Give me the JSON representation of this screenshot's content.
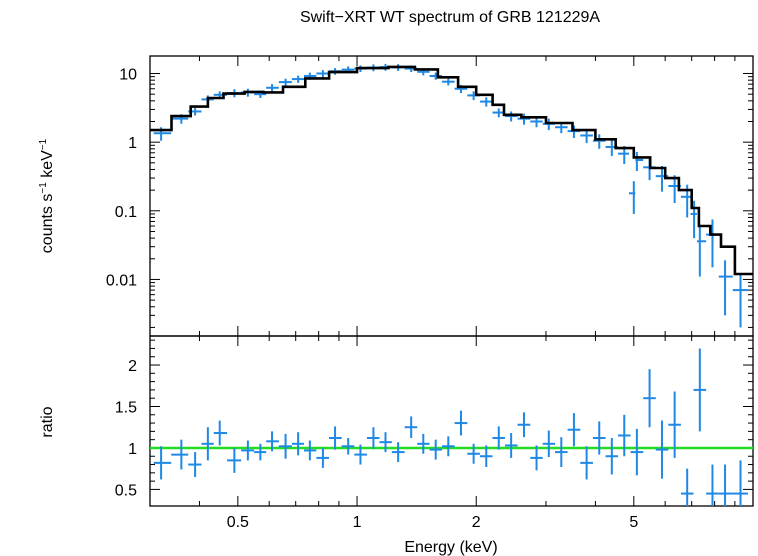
{
  "chart_data": {
    "type": "scatter",
    "title": "Swift−XRT WT spectrum of GRB 121229A",
    "xlabel": "Energy (keV)",
    "x_scale": "log",
    "xlim": [
      0.3,
      10
    ],
    "x_ticks": [
      0.5,
      1,
      2,
      5
    ],
    "x_tick_labels": [
      "0.5",
      "1",
      "2",
      "5"
    ],
    "colors": {
      "data": "#1e88e5",
      "model": "#000000",
      "unity": "#22dd22"
    },
    "panels": [
      {
        "name": "spectrum",
        "ylabel_parts": [
          "counts s",
          "−1",
          " keV",
          "−1"
        ],
        "y_scale": "log",
        "ylim": [
          0.0015,
          18
        ],
        "y_ticks": [
          0.01,
          0.1,
          1,
          10
        ],
        "y_tick_labels": [
          "0.01",
          "0.1",
          "1",
          "10"
        ],
        "series": [
          {
            "name": "data",
            "kind": "errorbar",
            "points": [
              [
                0.32,
                1.35,
                0.3
              ],
              [
                0.36,
                2.2,
                0.35
              ],
              [
                0.39,
                2.8,
                0.35
              ],
              [
                0.42,
                4.2,
                0.6
              ],
              [
                0.45,
                4.9,
                0.6
              ],
              [
                0.49,
                5.2,
                0.7
              ],
              [
                0.53,
                5.3,
                0.7
              ],
              [
                0.57,
                5.0,
                0.6
              ],
              [
                0.61,
                6.2,
                0.8
              ],
              [
                0.66,
                7.5,
                0.9
              ],
              [
                0.71,
                8.3,
                1.0
              ],
              [
                0.76,
                9.2,
                1.1
              ],
              [
                0.82,
                10.0,
                1.2
              ],
              [
                0.88,
                10.8,
                1.2
              ],
              [
                0.95,
                11.4,
                1.3
              ],
              [
                1.02,
                11.8,
                1.3
              ],
              [
                1.1,
                12.2,
                1.4
              ],
              [
                1.18,
                12.4,
                1.4
              ],
              [
                1.27,
                12.3,
                1.4
              ],
              [
                1.37,
                11.8,
                1.3
              ],
              [
                1.47,
                10.6,
                1.2
              ],
              [
                1.58,
                9.2,
                1.1
              ],
              [
                1.7,
                7.6,
                0.9
              ],
              [
                1.83,
                6.0,
                0.8
              ],
              [
                1.97,
                4.8,
                0.7
              ],
              [
                2.12,
                3.9,
                0.6
              ],
              [
                2.28,
                2.7,
                0.4
              ],
              [
                2.45,
                2.4,
                0.4
              ],
              [
                2.64,
                2.2,
                0.4
              ],
              [
                2.84,
                2.0,
                0.35
              ],
              [
                3.05,
                1.85,
                0.35
              ],
              [
                3.28,
                1.65,
                0.3
              ],
              [
                3.53,
                1.45,
                0.3
              ],
              [
                3.8,
                1.25,
                0.28
              ],
              [
                4.09,
                1.05,
                0.25
              ],
              [
                4.4,
                0.85,
                0.22
              ],
              [
                4.73,
                0.68,
                0.2
              ],
              [
                5.0,
                0.18,
                0.09
              ],
              [
                5.09,
                0.55,
                0.17
              ],
              [
                5.48,
                0.43,
                0.15
              ],
              [
                5.89,
                0.32,
                0.13
              ],
              [
                6.34,
                0.23,
                0.1
              ],
              [
                6.82,
                0.16,
                0.08
              ],
              [
                7.1,
                0.09,
                0.05
              ],
              [
                7.34,
                0.036,
                0.025
              ],
              [
                7.9,
                0.045,
                0.03
              ],
              [
                8.5,
                0.011,
                0.008
              ],
              [
                9.3,
                0.007,
                0.005
              ]
            ]
          },
          {
            "name": "model",
            "kind": "step",
            "points": [
              [
                0.3,
                1.5
              ],
              [
                0.34,
                2.4
              ],
              [
                0.38,
                3.3
              ],
              [
                0.42,
                4.4
              ],
              [
                0.46,
                5.1
              ],
              [
                0.52,
                5.4
              ],
              [
                0.58,
                5.3
              ],
              [
                0.65,
                6.4
              ],
              [
                0.74,
                8.5
              ],
              [
                0.85,
                10.5
              ],
              [
                1.0,
                12.0
              ],
              [
                1.2,
                12.5
              ],
              [
                1.4,
                11.5
              ],
              [
                1.6,
                8.8
              ],
              [
                1.8,
                6.4
              ],
              [
                2.0,
                4.9
              ],
              [
                2.2,
                3.5
              ],
              [
                2.35,
                2.5
              ],
              [
                2.6,
                2.3
              ],
              [
                3.0,
                1.9
              ],
              [
                3.5,
                1.5
              ],
              [
                4.0,
                1.1
              ],
              [
                4.5,
                0.82
              ],
              [
                5.0,
                0.6
              ],
              [
                5.5,
                0.42
              ],
              [
                6.0,
                0.3
              ],
              [
                6.5,
                0.2
              ],
              [
                7.0,
                0.11
              ],
              [
                7.3,
                0.06
              ],
              [
                7.8,
                0.045
              ],
              [
                8.3,
                0.03
              ],
              [
                9.0,
                0.012
              ],
              [
                10.0,
                0.012
              ]
            ]
          }
        ]
      },
      {
        "name": "ratio",
        "ylabel": "ratio",
        "y_scale": "linear",
        "ylim": [
          0.3,
          2.35
        ],
        "y_ticks": [
          0.5,
          1,
          1.5,
          2
        ],
        "y_tick_labels": [
          "0.5",
          "1",
          "1.5",
          "2"
        ],
        "reference_line": 1,
        "series": [
          {
            "name": "data",
            "kind": "errorbar",
            "points": [
              [
                0.32,
                0.82,
                0.2
              ],
              [
                0.36,
                0.92,
                0.18
              ],
              [
                0.39,
                0.8,
                0.15
              ],
              [
                0.42,
                1.05,
                0.2
              ],
              [
                0.45,
                1.18,
                0.15
              ],
              [
                0.49,
                0.85,
                0.15
              ],
              [
                0.53,
                0.97,
                0.12
              ],
              [
                0.57,
                0.95,
                0.1
              ],
              [
                0.61,
                1.08,
                0.12
              ],
              [
                0.66,
                1.02,
                0.15
              ],
              [
                0.71,
                1.05,
                0.14
              ],
              [
                0.76,
                0.97,
                0.12
              ],
              [
                0.82,
                0.88,
                0.12
              ],
              [
                0.88,
                1.12,
                0.14
              ],
              [
                0.95,
                1.02,
                0.1
              ],
              [
                1.02,
                0.92,
                0.12
              ],
              [
                1.1,
                1.12,
                0.13
              ],
              [
                1.18,
                1.07,
                0.12
              ],
              [
                1.27,
                0.95,
                0.12
              ],
              [
                1.37,
                1.25,
                0.13
              ],
              [
                1.47,
                1.05,
                0.12
              ],
              [
                1.58,
                0.98,
                0.12
              ],
              [
                1.7,
                1.02,
                0.12
              ],
              [
                1.83,
                1.3,
                0.15
              ],
              [
                1.97,
                0.93,
                0.12
              ],
              [
                2.12,
                0.9,
                0.13
              ],
              [
                2.28,
                1.12,
                0.14
              ],
              [
                2.45,
                1.03,
                0.15
              ],
              [
                2.64,
                1.28,
                0.15
              ],
              [
                2.84,
                0.88,
                0.15
              ],
              [
                3.05,
                1.05,
                0.16
              ],
              [
                3.28,
                0.95,
                0.18
              ],
              [
                3.53,
                1.22,
                0.2
              ],
              [
                3.8,
                0.82,
                0.2
              ],
              [
                4.09,
                1.12,
                0.2
              ],
              [
                4.4,
                0.9,
                0.22
              ],
              [
                4.73,
                1.15,
                0.25
              ],
              [
                5.09,
                0.95,
                0.28
              ],
              [
                5.48,
                1.6,
                0.35
              ],
              [
                5.89,
                0.98,
                0.35
              ],
              [
                6.34,
                1.28,
                0.4
              ],
              [
                6.82,
                0.45,
                0.3
              ],
              [
                7.34,
                1.7,
                0.5
              ],
              [
                7.9,
                0.45,
                0.35
              ],
              [
                8.5,
                0.45,
                0.35
              ],
              [
                9.3,
                0.45,
                0.4
              ]
            ]
          }
        ]
      }
    ]
  }
}
